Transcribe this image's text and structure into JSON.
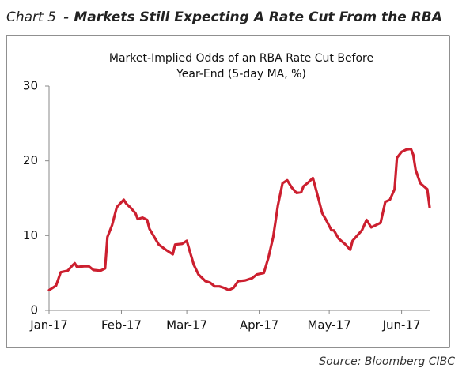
{
  "chart_data": {
    "type": "line",
    "chart_label": "Chart 5",
    "title": "- Markets Still Expecting A Rate Cut From the RBA",
    "subtitle": [
      "Market-Implied Odds of an RBA Rate Cut Before",
      "Year-End (5-day MA, %)"
    ],
    "source": "Source:  Bloomberg CIBC",
    "x": [
      0,
      3,
      5,
      8,
      10,
      11,
      12,
      15,
      17,
      19,
      22,
      24,
      25,
      27,
      29,
      32,
      33,
      35,
      37,
      38,
      40,
      42,
      43,
      47,
      50,
      53,
      54,
      57,
      59,
      60,
      62,
      64,
      67,
      69,
      71,
      73,
      75,
      77,
      79,
      81,
      84,
      87,
      89,
      92,
      94,
      96,
      98,
      100,
      102,
      104,
      106,
      108,
      109,
      111,
      113,
      115,
      117,
      119,
      121,
      122,
      124,
      127,
      129,
      130,
      132,
      134,
      136,
      138,
      140,
      142,
      144,
      146,
      148,
      149,
      151,
      153,
      155,
      156,
      157,
      159,
      162,
      163
    ],
    "series": [
      {
        "name": "Market-Implied Odds",
        "color": "#cc1f2f",
        "values": [
          2.7,
          3.3,
          5.1,
          5.3,
          6.0,
          6.3,
          5.8,
          5.9,
          5.9,
          5.4,
          5.3,
          5.6,
          9.8,
          11.4,
          13.8,
          14.8,
          14.3,
          13.7,
          13.0,
          12.2,
          12.4,
          12.1,
          10.9,
          8.8,
          8.1,
          7.5,
          8.8,
          8.9,
          9.3,
          8.2,
          6.1,
          4.8,
          3.9,
          3.7,
          3.2,
          3.2,
          3.0,
          2.7,
          3.0,
          3.9,
          4.0,
          4.3,
          4.8,
          5.0,
          7.1,
          9.8,
          14.0,
          17.0,
          17.4,
          16.4,
          15.7,
          15.8,
          16.6,
          17.1,
          17.7,
          15.4,
          13.0,
          11.9,
          10.7,
          10.7,
          9.6,
          8.8,
          8.1,
          9.3,
          10.0,
          10.7,
          12.1,
          11.1,
          11.4,
          11.7,
          14.5,
          14.8,
          16.2,
          20.4,
          21.2,
          21.5,
          21.6,
          20.8,
          18.8,
          17.0,
          16.2,
          13.8
        ]
      }
    ],
    "xlim": [
      0,
      163
    ],
    "xticks": [
      {
        "value": 0,
        "label": "Jan-17"
      },
      {
        "value": 31,
        "label": "Feb-17"
      },
      {
        "value": 59,
        "label": "Mar-17"
      },
      {
        "value": 90,
        "label": "Apr-17"
      },
      {
        "value": 120,
        "label": "May-17"
      },
      {
        "value": 151,
        "label": "Jun-17"
      }
    ],
    "ylim": [
      0,
      30
    ],
    "yticks": [
      0,
      10,
      20,
      30
    ],
    "grid": false
  }
}
